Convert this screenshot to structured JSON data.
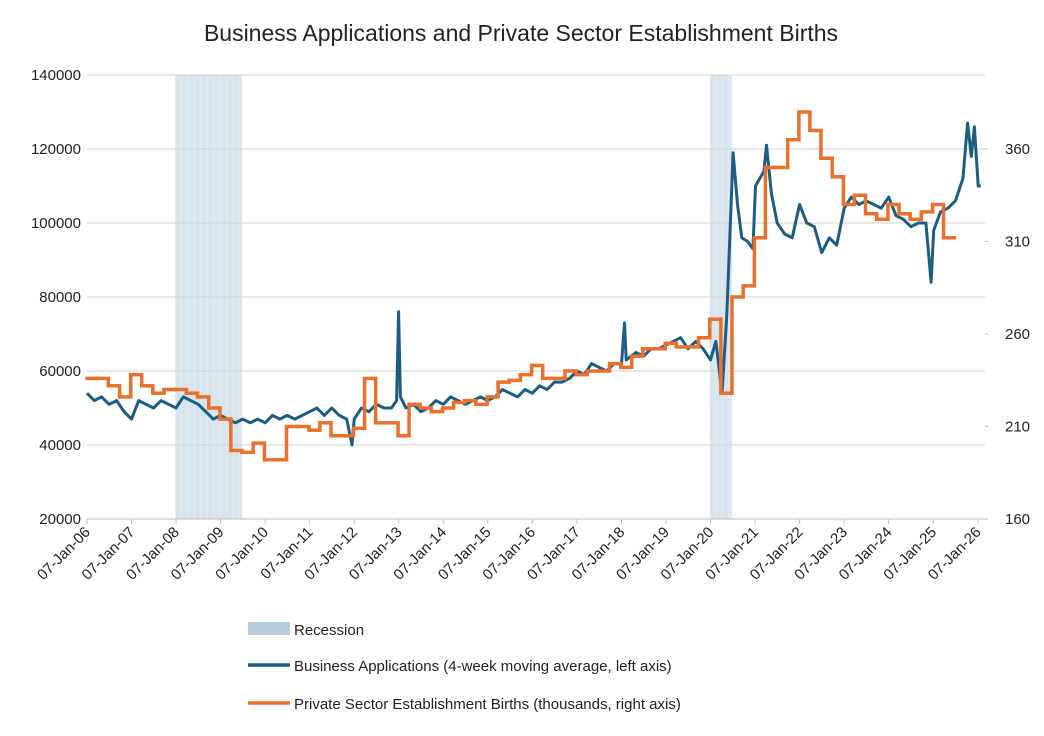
{
  "chart_data": {
    "type": "line",
    "title": "Business Applications and Private Sector Establishment Births",
    "xlim": [
      "2006-01-07",
      "2026-03-07"
    ],
    "xticks": [
      {
        "value": "2006-01-07",
        "label": "07-Jan-06"
      },
      {
        "value": "2007-01-07",
        "label": "07-Jan-07"
      },
      {
        "value": "2008-01-07",
        "label": "07-Jan-08"
      },
      {
        "value": "2009-01-07",
        "label": "07-Jan-09"
      },
      {
        "value": "2010-01-07",
        "label": "07-Jan-10"
      },
      {
        "value": "2011-01-07",
        "label": "07-Jan-11"
      },
      {
        "value": "2012-01-07",
        "label": "07-Jan-12"
      },
      {
        "value": "2013-01-07",
        "label": "07-Jan-13"
      },
      {
        "value": "2014-01-07",
        "label": "07-Jan-14"
      },
      {
        "value": "2015-01-07",
        "label": "07-Jan-15"
      },
      {
        "value": "2016-01-07",
        "label": "07-Jan-16"
      },
      {
        "value": "2017-01-07",
        "label": "07-Jan-17"
      },
      {
        "value": "2018-01-07",
        "label": "07-Jan-18"
      },
      {
        "value": "2019-01-07",
        "label": "07-Jan-19"
      },
      {
        "value": "2020-01-07",
        "label": "07-Jan-20"
      },
      {
        "value": "2021-01-07",
        "label": "07-Jan-21"
      },
      {
        "value": "2022-01-07",
        "label": "07-Jan-22"
      },
      {
        "value": "2023-01-07",
        "label": "07-Jan-23"
      },
      {
        "value": "2024-01-07",
        "label": "07-Jan-24"
      },
      {
        "value": "2025-01-07",
        "label": "07-Jan-25"
      },
      {
        "value": "2026-01-07",
        "label": "07-Jan-26"
      }
    ],
    "ylim": [
      20000,
      140000
    ],
    "yticks": [
      20000,
      40000,
      60000,
      80000,
      100000,
      120000,
      140000
    ],
    "y2lim": [
      160,
      400
    ],
    "y2ticks": [
      160,
      210,
      260,
      310,
      360
    ],
    "grid": true,
    "recession": {
      "name": "Recession",
      "color": "#b8cddb",
      "periods": [
        [
          "2008-01-01",
          "2009-06-30"
        ],
        [
          "2020-01-01",
          "2020-06-30"
        ]
      ]
    },
    "series": [
      {
        "name": "Business Applications (4-week moving average, left axis)",
        "color": "#1b5e82",
        "axis": "y",
        "x": [
          "2006-01-07",
          "2006-03-07",
          "2006-05-07",
          "2006-07-07",
          "2006-09-07",
          "2006-11-07",
          "2007-01-07",
          "2007-03-07",
          "2007-05-07",
          "2007-07-07",
          "2007-09-07",
          "2007-11-07",
          "2008-01-07",
          "2008-03-07",
          "2008-05-07",
          "2008-07-07",
          "2008-09-07",
          "2008-11-07",
          "2009-01-07",
          "2009-03-07",
          "2009-05-07",
          "2009-07-07",
          "2009-09-07",
          "2009-11-07",
          "2010-01-07",
          "2010-03-07",
          "2010-05-07",
          "2010-07-07",
          "2010-09-07",
          "2010-11-07",
          "2011-01-07",
          "2011-03-07",
          "2011-05-07",
          "2011-07-07",
          "2011-09-07",
          "2011-11-07",
          "2011-12-20",
          "2012-01-07",
          "2012-03-07",
          "2012-05-07",
          "2012-07-07",
          "2012-09-07",
          "2012-11-07",
          "2012-12-20",
          "2013-01-05",
          "2013-01-20",
          "2013-03-07",
          "2013-05-07",
          "2013-07-07",
          "2013-09-07",
          "2013-11-07",
          "2014-01-07",
          "2014-03-07",
          "2014-05-07",
          "2014-07-07",
          "2014-09-07",
          "2014-11-07",
          "2015-01-07",
          "2015-03-07",
          "2015-05-07",
          "2015-07-07",
          "2015-09-07",
          "2015-11-07",
          "2016-01-07",
          "2016-03-07",
          "2016-05-07",
          "2016-07-07",
          "2016-09-07",
          "2016-11-07",
          "2017-01-07",
          "2017-03-07",
          "2017-05-07",
          "2017-07-07",
          "2017-09-07",
          "2017-11-07",
          "2018-01-07",
          "2018-02-01",
          "2018-02-15",
          "2018-05-07",
          "2018-07-07",
          "2018-09-07",
          "2018-11-07",
          "2019-01-07",
          "2019-03-07",
          "2019-05-07",
          "2019-07-07",
          "2019-09-07",
          "2019-11-07",
          "2020-01-07",
          "2020-02-20",
          "2020-04-10",
          "2020-05-20",
          "2020-07-10",
          "2020-08-15",
          "2020-09-20",
          "2020-11-07",
          "2020-12-20",
          "2021-01-10",
          "2021-03-20",
          "2021-04-10",
          "2021-05-20",
          "2021-07-07",
          "2021-09-07",
          "2021-11-07",
          "2022-01-07",
          "2022-03-07",
          "2022-05-07",
          "2022-07-07",
          "2022-09-07",
          "2022-11-07",
          "2023-01-07",
          "2023-03-07",
          "2023-05-07",
          "2023-07-07",
          "2023-09-07",
          "2023-11-07",
          "2024-01-07",
          "2024-03-07",
          "2024-05-07",
          "2024-07-07",
          "2024-09-07",
          "2024-11-07",
          "2024-12-20",
          "2025-01-10",
          "2025-03-07",
          "2025-05-07",
          "2025-07-07",
          "2025-09-07",
          "2025-10-15",
          "2025-11-15",
          "2025-12-10",
          "2026-01-10",
          "2026-01-31"
        ],
        "values": [
          54000,
          52000,
          53000,
          51000,
          52000,
          49000,
          47000,
          52000,
          51000,
          50000,
          52000,
          51000,
          50000,
          53000,
          52000,
          51000,
          49000,
          47000,
          48000,
          47000,
          46000,
          47000,
          46000,
          47000,
          46000,
          48000,
          47000,
          48000,
          47000,
          48000,
          49000,
          50000,
          48000,
          50000,
          48000,
          47000,
          40000,
          47000,
          50000,
          49000,
          51000,
          50000,
          50000,
          52000,
          76000,
          53000,
          50000,
          51000,
          49000,
          50000,
          52000,
          51000,
          53000,
          52000,
          51000,
          52000,
          53000,
          52000,
          53000,
          55000,
          54000,
          53000,
          55000,
          54000,
          56000,
          55000,
          57000,
          57000,
          58000,
          60000,
          59000,
          62000,
          61000,
          60000,
          62000,
          62000,
          73000,
          63000,
          65000,
          64000,
          66000,
          66000,
          67000,
          68000,
          69000,
          66000,
          68000,
          66000,
          63000,
          68000,
          54000,
          75000,
          119000,
          105000,
          96000,
          95000,
          93000,
          110000,
          114000,
          121000,
          108000,
          100000,
          97000,
          96000,
          105000,
          100000,
          99000,
          92000,
          96000,
          94000,
          104000,
          107000,
          105000,
          106000,
          105000,
          104000,
          107000,
          102000,
          101000,
          99000,
          100000,
          100000,
          84000,
          98000,
          103000,
          104000,
          106000,
          112000,
          127000,
          118000,
          126000,
          110000,
          110000
        ]
      },
      {
        "name": "Private Sector Establishment Births (thousands, right axis)",
        "color": "#e9712b",
        "axis": "y2",
        "step": true,
        "x": [
          "2006-01-07",
          "2006-04-01",
          "2006-07-01",
          "2006-10-01",
          "2007-01-01",
          "2007-04-01",
          "2007-07-01",
          "2007-10-01",
          "2008-01-01",
          "2008-04-01",
          "2008-07-01",
          "2008-10-01",
          "2009-01-01",
          "2009-04-01",
          "2009-07-01",
          "2009-10-01",
          "2010-01-01",
          "2010-04-01",
          "2010-07-01",
          "2010-10-01",
          "2011-01-01",
          "2011-04-01",
          "2011-07-01",
          "2011-10-01",
          "2012-01-01",
          "2012-04-01",
          "2012-07-01",
          "2012-10-01",
          "2013-01-01",
          "2013-04-01",
          "2013-07-01",
          "2013-10-01",
          "2014-01-01",
          "2014-04-01",
          "2014-07-01",
          "2014-10-01",
          "2015-01-01",
          "2015-04-01",
          "2015-07-01",
          "2015-10-01",
          "2016-01-01",
          "2016-04-01",
          "2016-07-01",
          "2016-10-01",
          "2017-01-01",
          "2017-04-01",
          "2017-07-01",
          "2017-10-01",
          "2018-01-01",
          "2018-04-01",
          "2018-07-01",
          "2018-10-01",
          "2019-01-01",
          "2019-04-01",
          "2019-07-01",
          "2019-10-01",
          "2020-01-01",
          "2020-04-01",
          "2020-07-01",
          "2020-10-01",
          "2021-01-01",
          "2021-04-01",
          "2021-07-01",
          "2021-10-01",
          "2022-01-01",
          "2022-04-01",
          "2022-07-01",
          "2022-10-01",
          "2023-01-01",
          "2023-04-01",
          "2023-07-01",
          "2023-10-01",
          "2024-01-01",
          "2024-04-01",
          "2024-07-01",
          "2024-10-01",
          "2025-01-01",
          "2025-04-01"
        ],
        "values": [
          236,
          236,
          232,
          226,
          238,
          232,
          228,
          230,
          230,
          228,
          226,
          220,
          214,
          197,
          196,
          201,
          192,
          192,
          210,
          210,
          208,
          212,
          205,
          205,
          209,
          236,
          212,
          212,
          205,
          222,
          220,
          218,
          220,
          223,
          224,
          222,
          226,
          234,
          235,
          238,
          243,
          236,
          236,
          240,
          238,
          240,
          240,
          244,
          242,
          248,
          252,
          252,
          255,
          253,
          253,
          258,
          268,
          228,
          280,
          286,
          312,
          350,
          350,
          365,
          380,
          370,
          355,
          345,
          330,
          335,
          325,
          322,
          330,
          325,
          322,
          326,
          330,
          312
        ]
      }
    ]
  }
}
